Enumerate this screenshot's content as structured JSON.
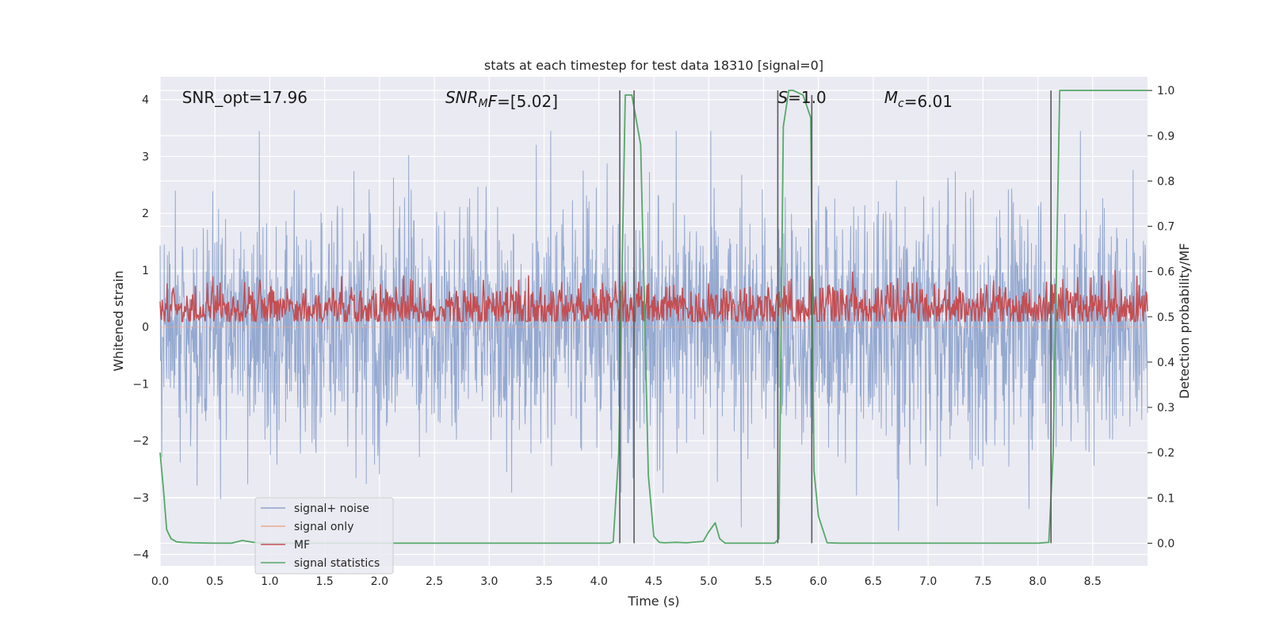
{
  "chart_data": {
    "type": "line",
    "title": "stats at each timestep for test data 18310 [signal=0]",
    "xlabel": "Time (s)",
    "ylabel": "Whitened strain",
    "y2label": "Detection probability/MF",
    "xlim": [
      0.0,
      9.0
    ],
    "ylim": [
      -4.2,
      4.4
    ],
    "y2lim": [
      -0.05,
      1.03
    ],
    "xticks": [
      0.0,
      0.5,
      1.0,
      1.5,
      2.0,
      2.5,
      3.0,
      3.5,
      4.0,
      4.5,
      5.0,
      5.5,
      6.0,
      6.5,
      7.0,
      7.5,
      8.0,
      8.5
    ],
    "xtick_labels": [
      "0.0",
      "0.5",
      "1.0",
      "1.5",
      "2.0",
      "2.5",
      "3.0",
      "3.5",
      "4.0",
      "4.5",
      "5.0",
      "5.5",
      "6.0",
      "6.5",
      "7.0",
      "7.5",
      "8.0",
      "8.5"
    ],
    "yticks": [
      -4,
      -3,
      -2,
      -1,
      0,
      1,
      2,
      3,
      4
    ],
    "ytick_labels": [
      "−4",
      "−3",
      "−2",
      "−1",
      "0",
      "1",
      "2",
      "3",
      "4"
    ],
    "y2ticks": [
      0.0,
      0.1,
      0.2,
      0.3,
      0.4,
      0.5,
      0.6,
      0.7,
      0.8,
      0.9,
      1.0
    ],
    "y2tick_labels": [
      "0.0",
      "0.1",
      "0.2",
      "0.3",
      "0.4",
      "0.5",
      "0.6",
      "0.7",
      "0.8",
      "0.9",
      "1.0"
    ],
    "annotations": [
      {
        "parts": [
          {
            "t": "SNR_opt=17.96",
            "i": false
          }
        ],
        "x": 0.2,
        "y": 4.05
      },
      {
        "parts": [
          {
            "t": "SNR",
            "i": true
          },
          {
            "t": "M",
            "i": true,
            "sub": true
          },
          {
            "t": "F",
            "i": true
          },
          {
            "t": "=[5.02]",
            "i": false
          }
        ],
        "x": 2.6,
        "y": 4.05
      },
      {
        "parts": [
          {
            "t": "S",
            "i": true
          },
          {
            "t": "=1.0",
            "i": false
          }
        ],
        "x": 5.63,
        "y": 4.05
      },
      {
        "parts": [
          {
            "t": "M",
            "i": true
          },
          {
            "t": "c",
            "i": true,
            "sub": true
          },
          {
            "t": "=6.01",
            "i": false
          }
        ],
        "x": 6.6,
        "y": 4.05
      }
    ],
    "vlines": [
      {
        "x0": 4.19,
        "x1": 4.19,
        "ytop": 1.0,
        "ybot": 0.0
      },
      {
        "x0": 4.32,
        "x1": 4.32,
        "ytop": 1.0,
        "ybot": 0.0
      },
      {
        "x0": 5.63,
        "x1": 5.63,
        "ytop": 1.0,
        "ybot": 0.0
      },
      {
        "x0": 5.94,
        "x1": 5.94,
        "ytop": 0.99,
        "ybot": 0.0
      },
      {
        "x0": 8.12,
        "x1": 8.12,
        "ytop": 1.0,
        "ybot": 0.0
      }
    ],
    "series": [
      {
        "name": "signal+ noise",
        "axis": "left",
        "color": "#8da3cd",
        "synthetic": "gaussian-noise",
        "n": 2400,
        "sigma": 1.05,
        "seed": 18310,
        "desc": "dense whitened-strain noise spanning roughly -3.6 to 3.3"
      },
      {
        "name": "signal only",
        "axis": "left",
        "color": "#e8a98e",
        "synthetic": "zero",
        "desc": "flat at 0 (no injected signal)"
      },
      {
        "name": "MF",
        "axis": "right",
        "color": "#c44e52",
        "synthetic": "mf-noise",
        "n": 1400,
        "center": 0.52,
        "spread": 0.028,
        "seed": 4242,
        "desc": "matched-filter output fluctuating around 0.52, peaks ~0.62"
      },
      {
        "name": "signal statistics",
        "axis": "right",
        "color": "#55a868",
        "x": [
          0.0,
          0.03,
          0.06,
          0.1,
          0.15,
          0.2,
          0.3,
          0.5,
          0.65,
          0.75,
          0.85,
          1.0,
          1.5,
          2.0,
          2.5,
          3.0,
          3.5,
          4.0,
          4.1,
          4.13,
          4.18,
          4.24,
          4.3,
          4.38,
          4.45,
          4.5,
          4.55,
          4.6,
          4.7,
          4.8,
          4.95,
          5.0,
          5.06,
          5.1,
          5.15,
          5.3,
          5.5,
          5.6,
          5.64,
          5.68,
          5.73,
          5.77,
          5.86,
          5.93,
          5.96,
          6.0,
          6.08,
          6.2,
          7.0,
          8.0,
          8.1,
          8.14,
          8.2,
          8.3,
          8.5,
          9.0
        ],
        "values": [
          0.2,
          0.12,
          0.03,
          0.01,
          0.003,
          0.002,
          0.001,
          0.0,
          0.0,
          0.006,
          0.002,
          0.0,
          0.0,
          0.0,
          0.0,
          0.0,
          0.0,
          0.0,
          0.0,
          0.003,
          0.2,
          0.99,
          0.99,
          0.88,
          0.15,
          0.015,
          0.002,
          0.001,
          0.002,
          0.001,
          0.004,
          0.025,
          0.045,
          0.01,
          0.0,
          0.0,
          0.0,
          0.0,
          0.01,
          0.92,
          1.0,
          1.0,
          0.99,
          0.94,
          0.16,
          0.06,
          0.001,
          0.0,
          0.0,
          0.0,
          0.002,
          0.2,
          1.0,
          1.0,
          1.0,
          1.0
        ]
      }
    ],
    "legend": {
      "location": "lower-left",
      "entries": [
        {
          "label": "signal+ noise",
          "color": "#8da3cd"
        },
        {
          "label": "signal only",
          "color": "#e8a98e"
        },
        {
          "label": "MF",
          "color": "#c44e52"
        },
        {
          "label": "signal statistics",
          "color": "#55a868"
        }
      ]
    },
    "colors": {
      "panel_bg": "#eaeaf2",
      "grid": "#ffffff",
      "vline": "#5a5a5a",
      "text": "#262626"
    }
  }
}
